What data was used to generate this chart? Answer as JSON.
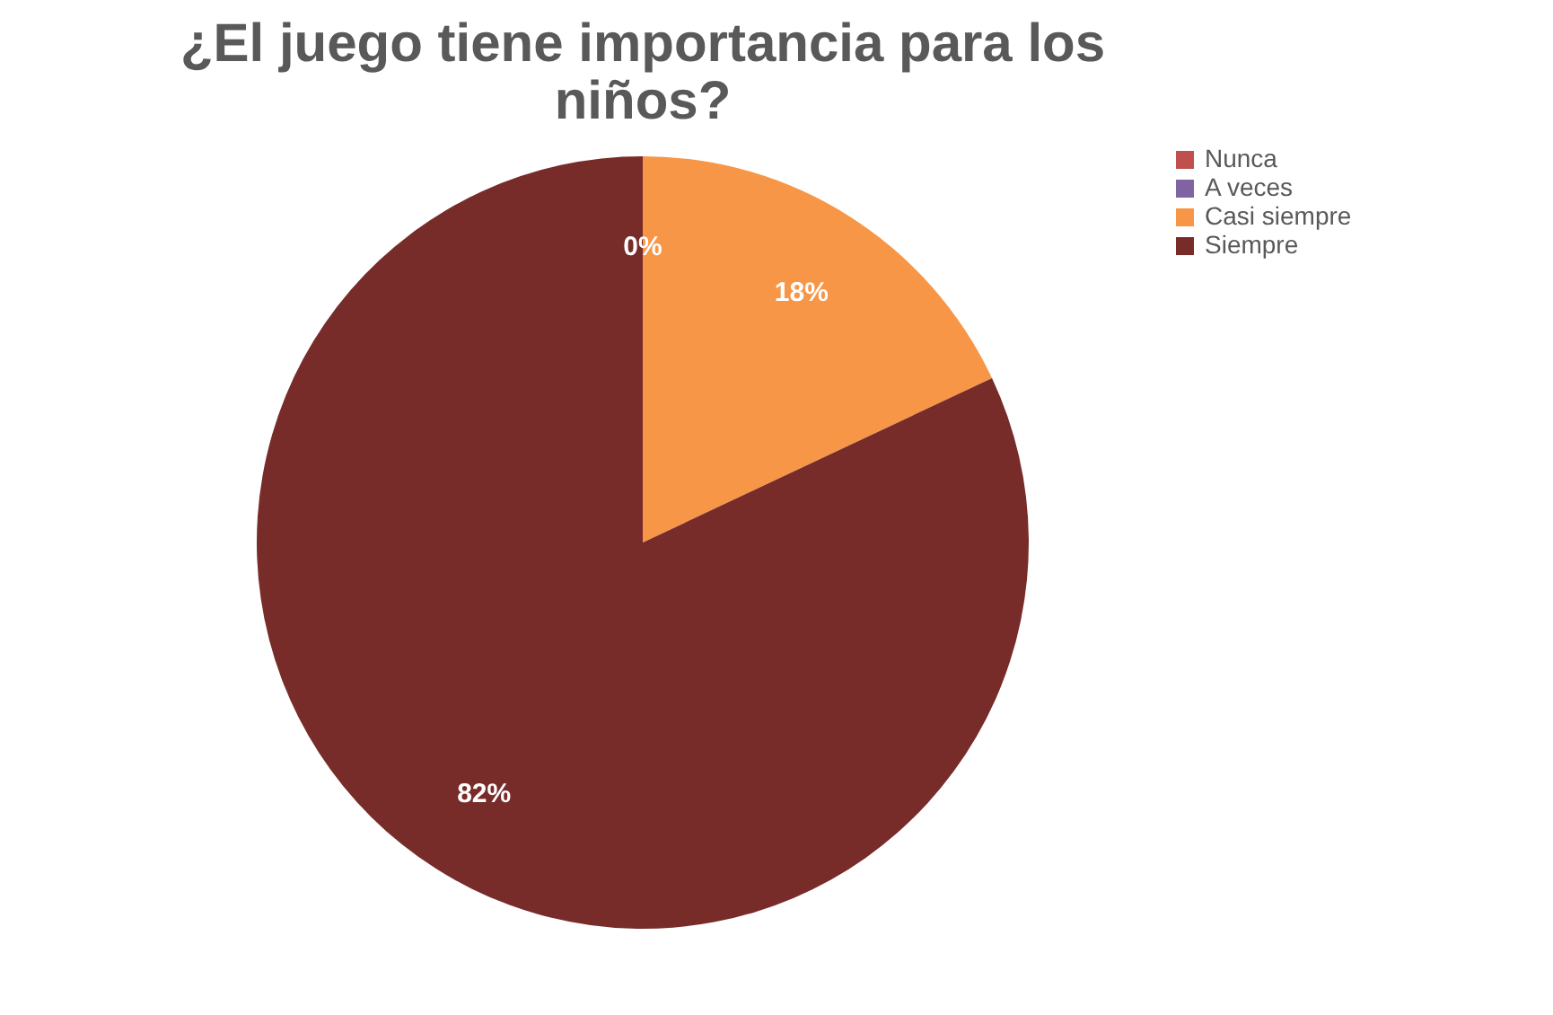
{
  "chart_data": {
    "type": "pie",
    "title": "¿El juego tiene importancia para los niños?",
    "categories": [
      "Nunca",
      "A veces",
      "Casi siempre",
      "Siempre"
    ],
    "values": [
      0,
      0,
      18,
      82
    ],
    "colors": [
      "#c0504d",
      "#8064a2",
      "#f79646",
      "#772c2a"
    ],
    "value_labels": [
      "0%",
      null,
      "18%",
      "82%"
    ],
    "legend": "right"
  }
}
